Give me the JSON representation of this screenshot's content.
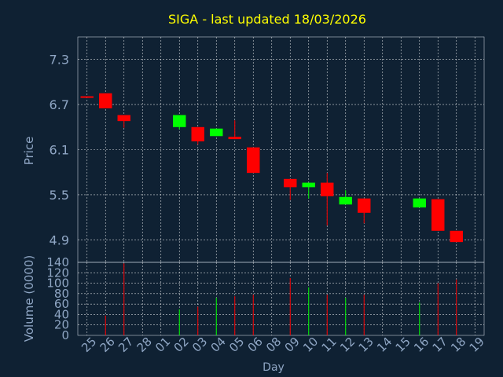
{
  "chart_data": {
    "type": "candlestick",
    "title": "SIGA - last updated 18/03/2026",
    "xlabel": "Day",
    "colors": {
      "background": "#0f2133",
      "title": "#ffff00",
      "axis_text": "#8fa6c4",
      "grid": "#ffffff",
      "up": "#00ff00",
      "down": "#ff0000"
    },
    "price_panel": {
      "ylabel": "Price",
      "ylim": [
        4.6,
        7.6
      ],
      "yticks": [
        "7.3",
        "6.7",
        "6.1",
        "5.5",
        "4.9"
      ],
      "ytick_values": [
        7.3,
        6.7,
        6.1,
        5.5,
        4.9
      ]
    },
    "volume_panel": {
      "ylabel": "Volume (0000)",
      "ylim": [
        0,
        140
      ],
      "yticks": [
        "140",
        "120",
        "100",
        "80",
        "60",
        "40",
        "20",
        "0"
      ],
      "ytick_values": [
        140,
        120,
        100,
        80,
        60,
        40,
        20,
        0
      ]
    },
    "x_ticks": [
      "25",
      "26",
      "27",
      "28",
      "01",
      "02",
      "03",
      "04",
      "05",
      "06",
      "08",
      "09",
      "10",
      "11",
      "12",
      "13",
      "14",
      "15",
      "16",
      "17",
      "18",
      "19"
    ],
    "candles": [
      {
        "day": "25",
        "open": 6.81,
        "close": 6.79,
        "high": 6.81,
        "low": 6.79,
        "volume": 0
      },
      {
        "day": "26",
        "open": 6.85,
        "close": 6.65,
        "high": 6.85,
        "low": 6.65,
        "volume": 38
      },
      {
        "day": "27",
        "open": 6.56,
        "close": 6.48,
        "high": 6.56,
        "low": 6.39,
        "volume": 138
      },
      {
        "day": "28",
        "open": null,
        "close": null,
        "high": null,
        "low": null,
        "volume": 0
      },
      {
        "day": "01",
        "open": null,
        "close": null,
        "high": null,
        "low": null,
        "volume": 0
      },
      {
        "day": "02",
        "open": 6.4,
        "close": 6.56,
        "high": 6.56,
        "low": 6.37,
        "volume": 50
      },
      {
        "day": "03",
        "open": 6.4,
        "close": 6.21,
        "high": 6.4,
        "low": 6.17,
        "volume": 55
      },
      {
        "day": "04",
        "open": 6.28,
        "close": 6.38,
        "high": 6.38,
        "low": 6.28,
        "volume": 72
      },
      {
        "day": "05",
        "open": 6.27,
        "close": 6.24,
        "high": 6.49,
        "low": 6.24,
        "volume": 75
      },
      {
        "day": "06",
        "open": 6.13,
        "close": 5.79,
        "high": 6.13,
        "low": 5.79,
        "volume": 78
      },
      {
        "day": "08",
        "open": null,
        "close": null,
        "high": null,
        "low": null,
        "volume": 0
      },
      {
        "day": "09",
        "open": 5.71,
        "close": 5.6,
        "high": 5.71,
        "low": 5.43,
        "volume": 110
      },
      {
        "day": "10",
        "open": 5.6,
        "close": 5.66,
        "high": 5.66,
        "low": 5.45,
        "volume": 92
      },
      {
        "day": "11",
        "open": 5.66,
        "close": 5.48,
        "high": 5.79,
        "low": 5.09,
        "volume": 78
      },
      {
        "day": "12",
        "open": 5.37,
        "close": 5.47,
        "high": 5.56,
        "low": 5.37,
        "volume": 72
      },
      {
        "day": "13",
        "open": 5.45,
        "close": 5.26,
        "high": 5.45,
        "low": 5.12,
        "volume": 78
      },
      {
        "day": "14",
        "open": null,
        "close": null,
        "high": null,
        "low": null,
        "volume": 0
      },
      {
        "day": "15",
        "open": null,
        "close": null,
        "high": null,
        "low": null,
        "volume": 0
      },
      {
        "day": "16",
        "open": 5.33,
        "close": 5.45,
        "high": 5.45,
        "low": 5.33,
        "volume": 63
      },
      {
        "day": "17",
        "open": 5.44,
        "close": 5.02,
        "high": 5.44,
        "low": 5.02,
        "volume": 100
      },
      {
        "day": "18",
        "open": 5.02,
        "close": 4.87,
        "high": 5.02,
        "low": 4.87,
        "volume": 107
      }
    ]
  }
}
